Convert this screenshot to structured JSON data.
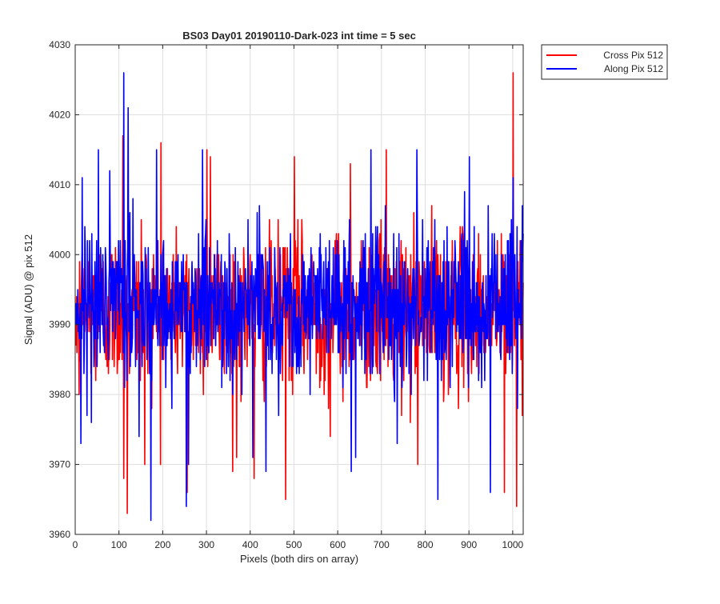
{
  "chart_data": {
    "type": "line",
    "title": "BS03 Day01 20190110-Dark-023 int time = 5 sec",
    "xlabel": "Pixels (both dirs on array)",
    "ylabel": "Signal (ADU) @ pix 512",
    "xlim": [
      0,
      1024
    ],
    "ylim": [
      3960,
      4030
    ],
    "grid": true,
    "legend_position": "outside-top-right",
    "x_ticks": [
      0,
      100,
      200,
      300,
      400,
      500,
      600,
      700,
      800,
      900,
      1000
    ],
    "y_ticks": [
      3960,
      3970,
      3980,
      3990,
      4000,
      4010,
      4020,
      4030
    ],
    "series": [
      {
        "name": "Cross Pix 512",
        "color": "#ff0000",
        "mean": 3992,
        "noise_std": 5.4,
        "n_points": 1024,
        "values_at": [
          [
            0,
            3987
          ],
          [
            8,
            3980
          ],
          [
            108,
            4017
          ],
          [
            110,
            3968
          ],
          [
            118,
            3963
          ],
          [
            150,
            4005
          ],
          [
            158,
            3970
          ],
          [
            195,
            4016
          ],
          [
            255,
            3966
          ],
          [
            300,
            4015
          ],
          [
            308,
            4014
          ],
          [
            368,
            3971
          ],
          [
            408,
            3968
          ],
          [
            480,
            3965
          ],
          [
            500,
            4014
          ],
          [
            582,
            3974
          ],
          [
            628,
            4013
          ],
          [
            710,
            4015
          ],
          [
            745,
            3977
          ],
          [
            782,
            3970
          ],
          [
            980,
            3966
          ],
          [
            1000,
            4026
          ],
          [
            1008,
            3964
          ],
          [
            1024,
            3996
          ]
        ]
      },
      {
        "name": "Along Pix 512",
        "color": "#0000ff",
        "mean": 3993,
        "noise_std": 5.4,
        "n_points": 1024,
        "values_at": [
          [
            0,
            3990
          ],
          [
            12,
            3973
          ],
          [
            15,
            4011
          ],
          [
            52,
            3970
          ],
          [
            52,
            4015
          ],
          [
            110,
            4026
          ],
          [
            120,
            4021
          ],
          [
            145,
            3974
          ],
          [
            172,
            3962
          ],
          [
            185,
            4015
          ],
          [
            253,
            3964
          ],
          [
            258,
            3970
          ],
          [
            290,
            4015
          ],
          [
            405,
            3971
          ],
          [
            435,
            3969
          ],
          [
            630,
            3969
          ],
          [
            640,
            3971
          ],
          [
            675,
            4015
          ],
          [
            735,
            3973
          ],
          [
            780,
            4015
          ],
          [
            828,
            3965
          ],
          [
            900,
            4014
          ],
          [
            948,
            3966
          ],
          [
            1000,
            4011
          ],
          [
            1010,
            3978
          ],
          [
            1024,
            4003
          ]
        ]
      }
    ]
  }
}
